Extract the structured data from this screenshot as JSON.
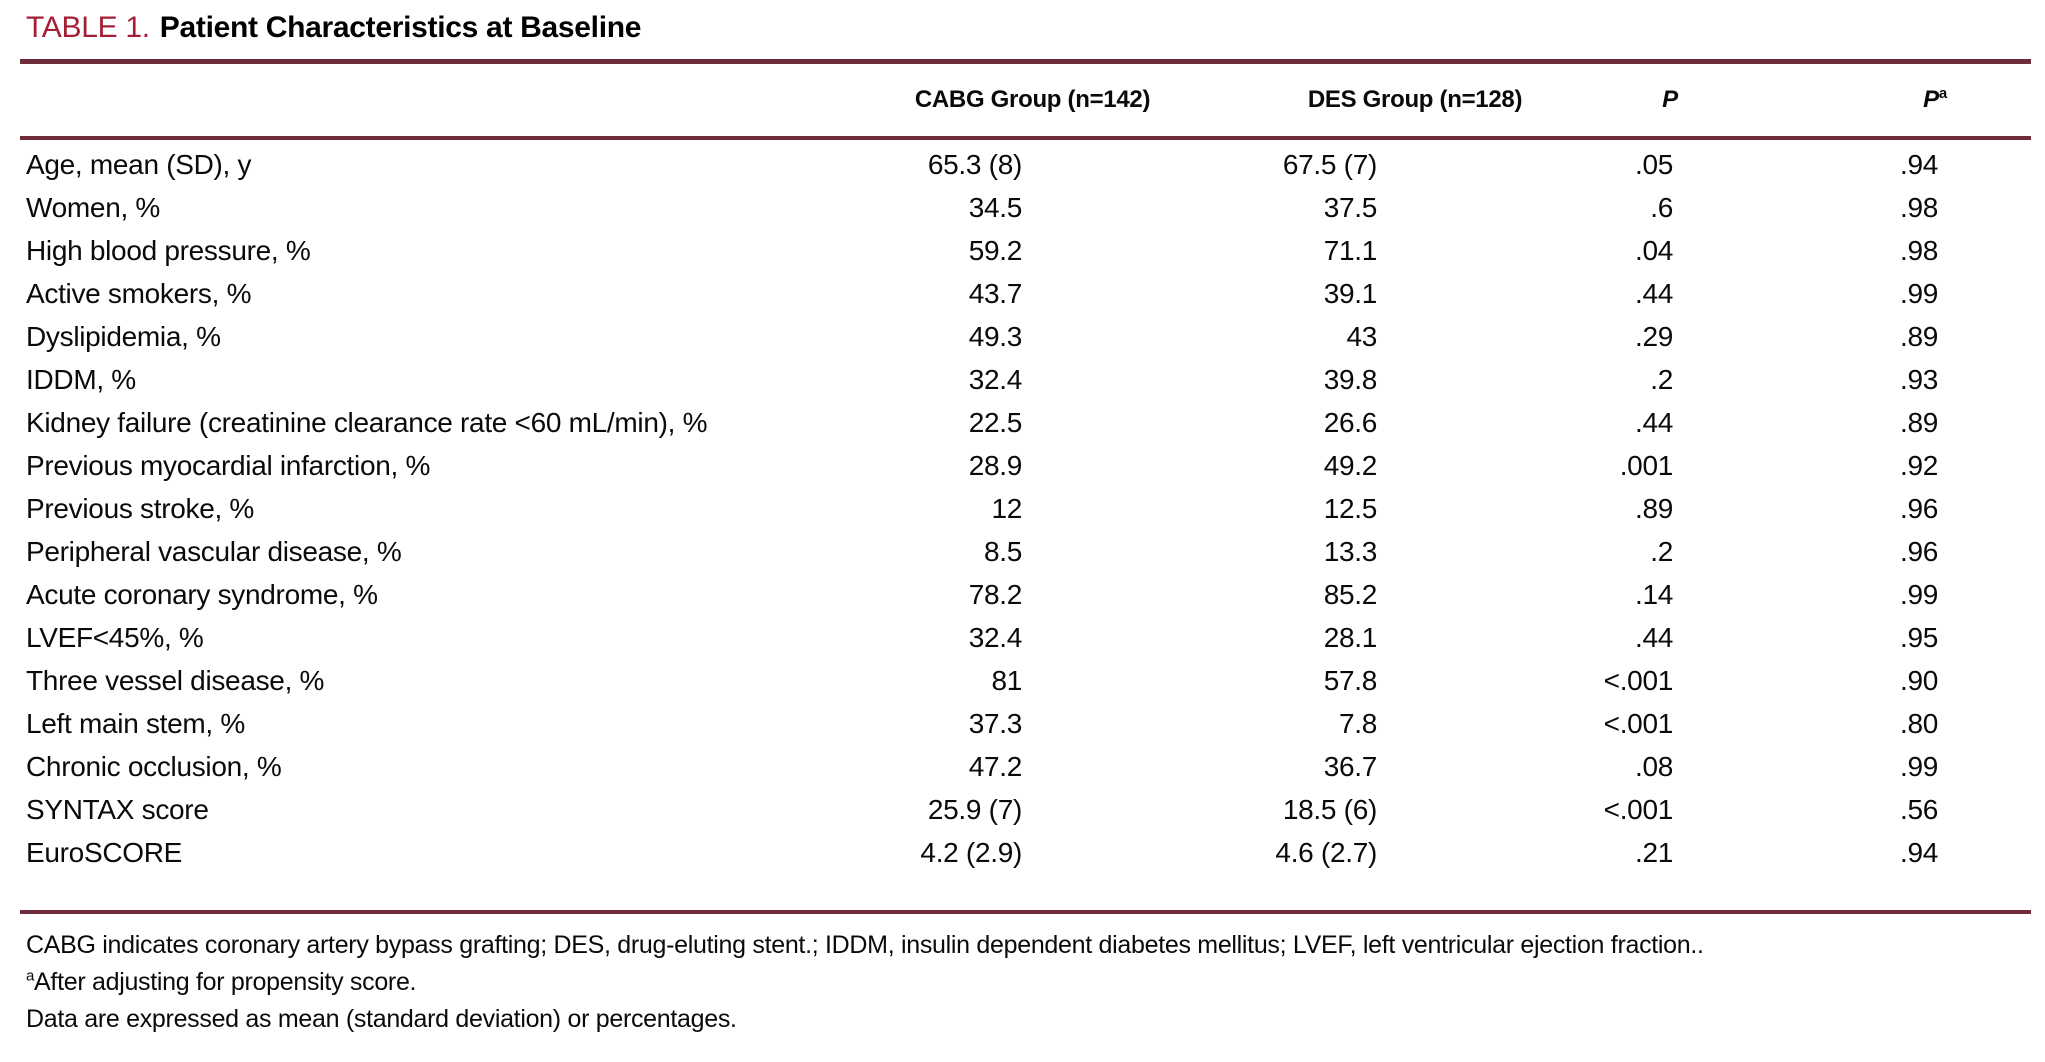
{
  "caption": {
    "label": "TABLE 1.",
    "title": "Patient Characteristics at Baseline"
  },
  "table": {
    "headers": {
      "cabg": "CABG Group (n=142)",
      "des": "DES Group (n=128)",
      "p": "P",
      "pa": "P",
      "pa_sup": "a"
    },
    "rows": [
      {
        "label": "Age, mean (SD), y",
        "cabg": "65.3 (8)",
        "des": "67.5 (7)",
        "p": ".05",
        "pa": ".94"
      },
      {
        "label": "Women, %",
        "cabg": "34.5",
        "des": "37.5",
        "p": ".6",
        "pa": ".98"
      },
      {
        "label": "High blood pressure, %",
        "cabg": "59.2",
        "des": "71.1",
        "p": ".04",
        "pa": ".98"
      },
      {
        "label": "Active smokers, %",
        "cabg": "43.7",
        "des": "39.1",
        "p": ".44",
        "pa": ".99"
      },
      {
        "label": "Dyslipidemia, %",
        "cabg": "49.3",
        "des": "43",
        "p": ".29",
        "pa": ".89"
      },
      {
        "label": "IDDM, %",
        "cabg": "32.4",
        "des": "39.8",
        "p": ".2",
        "pa": ".93"
      },
      {
        "label": "Kidney failure (creatinine clearance rate <60 mL/min), %",
        "cabg": "22.5",
        "des": "26.6",
        "p": ".44",
        "pa": ".89"
      },
      {
        "label": "Previous myocardial infarction, %",
        "cabg": "28.9",
        "des": "49.2",
        "p": ".001",
        "pa": ".92"
      },
      {
        "label": "Previous stroke, %",
        "cabg": "12",
        "des": "12.5",
        "p": ".89",
        "pa": ".96"
      },
      {
        "label": "Peripheral vascular disease, %",
        "cabg": "8.5",
        "des": "13.3",
        "p": ".2",
        "pa": ".96"
      },
      {
        "label": "Acute coronary syndrome, %",
        "cabg": "78.2",
        "des": "85.2",
        "p": ".14",
        "pa": ".99"
      },
      {
        "label": "LVEF<45%, %",
        "cabg": "32.4",
        "des": "28.1",
        "p": ".44",
        "pa": ".95"
      },
      {
        "label": "Three vessel disease, %",
        "cabg": "81",
        "des": "57.8",
        "p": "<.001",
        "pa": ".90"
      },
      {
        "label": "Left main stem, %",
        "cabg": "37.3",
        "des": "7.8",
        "p": "<.001",
        "pa": ".80"
      },
      {
        "label": "Chronic occlusion, %",
        "cabg": "47.2",
        "des": "36.7",
        "p": ".08",
        "pa": ".99"
      },
      {
        "label": "SYNTAX score",
        "cabg": "25.9 (7)",
        "des": "18.5 (6)",
        "p": "<.001",
        "pa": ".56"
      },
      {
        "label": "EuroSCORE",
        "cabg": "4.2 (2.9)",
        "des": "4.6 (2.7)",
        "p": ".21",
        "pa": ".94"
      }
    ]
  },
  "footnotes": {
    "abbreviations": "CABG indicates coronary artery bypass grafting; DES, drug-eluting stent.; IDDM, insulin dependent diabetes mellitus; LVEF, left ventricular ejection fraction..",
    "a_sup": "a",
    "a_text": "After adjusting for propensity score.",
    "data_note": "Data are expressed as mean (standard deviation) or percentages."
  },
  "colors": {
    "caption_red": "#A41E35",
    "rule_red": "#6E2C3A",
    "text": "#0A0A0A",
    "background": "#FFFFFF"
  }
}
